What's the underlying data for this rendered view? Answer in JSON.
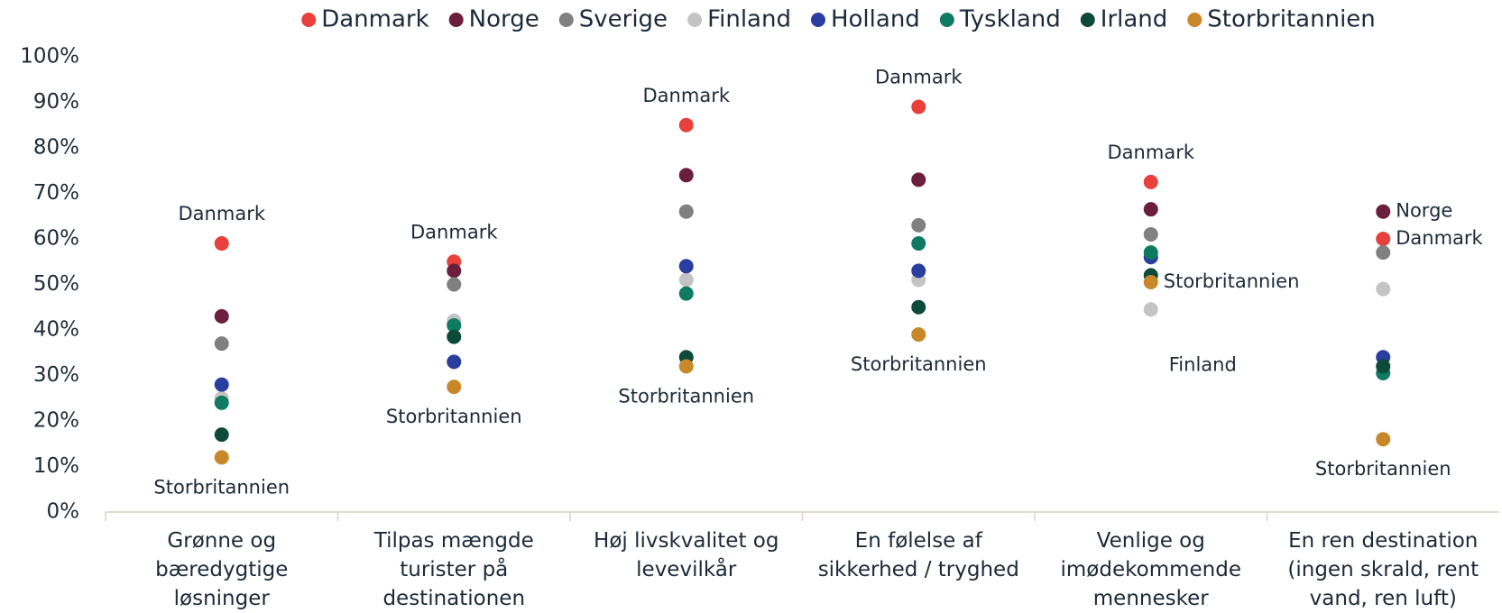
{
  "chart_data": {
    "type": "dot",
    "categories": [
      "Grønne og bæredygtige løsninger",
      "Tilpas mængde turister på destinationen",
      "Høj livskvalitet og levevilkår",
      "En følelse af sikkerhed / tryghed",
      "Venlige og imødekommende mennesker",
      "En ren destination (ingen skrald, rent vand, ren luft)"
    ],
    "series": [
      {
        "name": "Danmark",
        "color": "#e8403a",
        "values": [
          59,
          55,
          85,
          89,
          72.5,
          60
        ]
      },
      {
        "name": "Norge",
        "color": "#6b1f3c",
        "values": [
          43,
          53,
          74,
          73,
          66.5,
          66
        ]
      },
      {
        "name": "Sverige",
        "color": "#808080",
        "values": [
          37,
          50,
          66,
          63,
          61,
          57
        ]
      },
      {
        "name": "Finland",
        "color": "#c4c4c4",
        "values": [
          25,
          42,
          51,
          51,
          44.5,
          49
        ]
      },
      {
        "name": "Holland",
        "color": "#2a3ea0",
        "values": [
          28,
          33,
          54,
          53,
          56,
          34
        ]
      },
      {
        "name": "Tyskland",
        "color": "#0f7a62",
        "values": [
          24,
          41,
          48,
          59,
          57,
          30.5
        ]
      },
      {
        "name": "Irland",
        "color": "#0e4a3a",
        "values": [
          17,
          38.5,
          34,
          45,
          52,
          32
        ]
      },
      {
        "name": "Storbritannien",
        "color": "#c8882a",
        "values": [
          12,
          27.5,
          32,
          39,
          50.5,
          16
        ]
      }
    ],
    "ylim": [
      0,
      100
    ],
    "yticks": [
      {
        "value": 0,
        "label": "0%"
      },
      {
        "value": 10,
        "label": "10%"
      },
      {
        "value": 20,
        "label": "20%"
      },
      {
        "value": 30,
        "label": "30%"
      },
      {
        "value": 40,
        "label": "40%"
      },
      {
        "value": 50,
        "label": "50%"
      },
      {
        "value": 60,
        "label": "60%"
      },
      {
        "value": 70,
        "label": "70%"
      },
      {
        "value": 80,
        "label": "80%"
      },
      {
        "value": 90,
        "label": "90%"
      },
      {
        "value": 100,
        "label": "100%"
      }
    ],
    "legend": "top",
    "annotations": [
      {
        "text": "Danmark",
        "series": 0,
        "category": 0,
        "position": "above"
      },
      {
        "text": "Storbritannien",
        "series": 7,
        "category": 0,
        "position": "below"
      },
      {
        "text": "Danmark",
        "series": 0,
        "category": 1,
        "position": "above"
      },
      {
        "text": "Storbritannien",
        "series": 7,
        "category": 1,
        "position": "below"
      },
      {
        "text": "Danmark",
        "series": 0,
        "category": 2,
        "position": "above"
      },
      {
        "text": "Storbritannien",
        "series": 7,
        "category": 2,
        "position": "below"
      },
      {
        "text": "Danmark",
        "series": 0,
        "category": 3,
        "position": "above"
      },
      {
        "text": "Storbritannien",
        "series": 7,
        "category": 3,
        "position": "below"
      },
      {
        "text": "Danmark",
        "series": 0,
        "category": 4,
        "position": "above"
      },
      {
        "text": "Storbritannien",
        "series": 7,
        "category": 4,
        "position": "right"
      },
      {
        "text": "Finland",
        "series": 3,
        "category": 4,
        "position": "below-right"
      },
      {
        "text": "Norge",
        "series": 1,
        "category": 5,
        "position": "right"
      },
      {
        "text": "Danmark",
        "series": 0,
        "category": 5,
        "position": "right"
      },
      {
        "text": "Storbritannien",
        "series": 7,
        "category": 5,
        "position": "below"
      }
    ]
  }
}
